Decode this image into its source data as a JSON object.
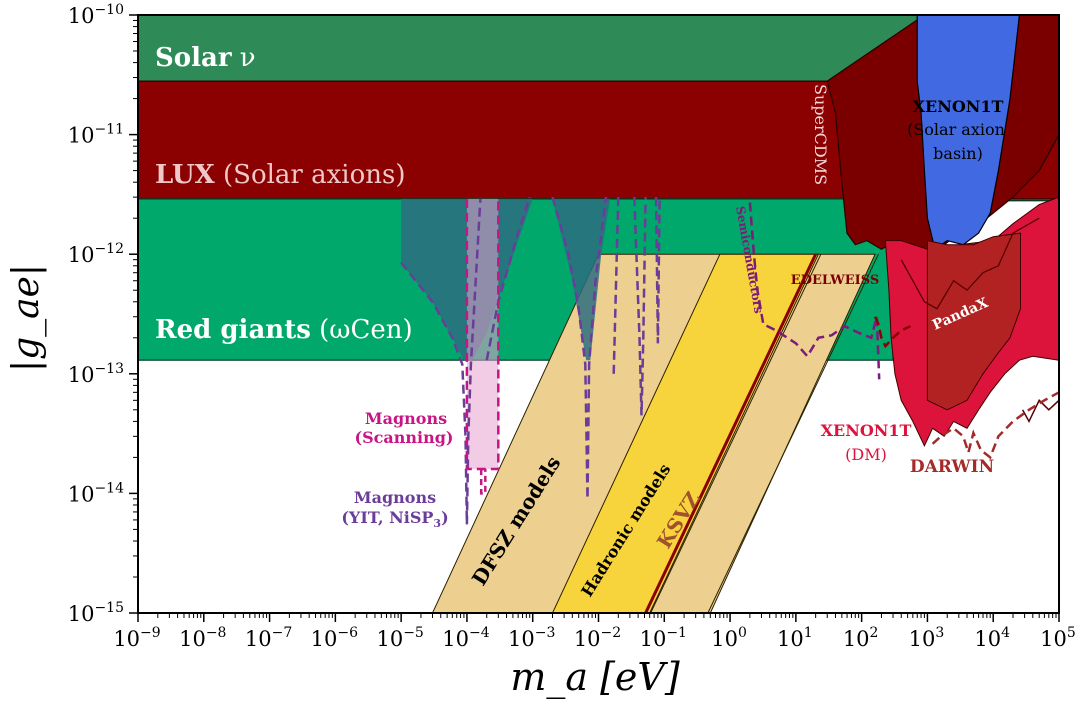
{
  "chart_data": {
    "type": "area",
    "title": "",
    "xlabel": "m_a [eV]",
    "ylabel": "|g_ae|",
    "x_scale": "log",
    "y_scale": "log",
    "xlim": [
      1e-09,
      100000.0
    ],
    "ylim": [
      1e-15,
      1e-10
    ],
    "grid": false,
    "x_ticks": [
      {
        "base": "10",
        "exp": "−9",
        "value": 1e-09
      },
      {
        "base": "10",
        "exp": "−8",
        "value": 1e-08
      },
      {
        "base": "10",
        "exp": "−7",
        "value": 1e-07
      },
      {
        "base": "10",
        "exp": "−6",
        "value": 1e-06
      },
      {
        "base": "10",
        "exp": "−5",
        "value": 1e-05
      },
      {
        "base": "10",
        "exp": "−4",
        "value": 0.0001
      },
      {
        "base": "10",
        "exp": "−3",
        "value": 0.001
      },
      {
        "base": "10",
        "exp": "−2",
        "value": 0.01
      },
      {
        "base": "10",
        "exp": "−1",
        "value": 0.1
      },
      {
        "base": "10",
        "exp": "0",
        "value": 1.0
      },
      {
        "base": "10",
        "exp": "1",
        "value": 10.0
      },
      {
        "base": "10",
        "exp": "2",
        "value": 100.0
      },
      {
        "base": "10",
        "exp": "3",
        "value": 1000.0
      },
      {
        "base": "10",
        "exp": "4",
        "value": 10000.0
      },
      {
        "base": "10",
        "exp": "5",
        "value": 100000.0
      }
    ],
    "y_ticks": [
      {
        "base": "10",
        "exp": "−10",
        "value": 1e-10
      },
      {
        "base": "10",
        "exp": "−11",
        "value": 1e-11
      },
      {
        "base": "10",
        "exp": "−12",
        "value": 1e-12
      },
      {
        "base": "10",
        "exp": "−13",
        "value": 1e-13
      },
      {
        "base": "10",
        "exp": "−14",
        "value": 1e-14
      },
      {
        "base": "10",
        "exp": "−15",
        "value": 1e-15
      }
    ],
    "colors": {
      "solar_nu": "#2e8b57",
      "lux": "#8b0000",
      "red_giants": "#00a86b",
      "xenon1t_solar": "#4169e1",
      "xenon1t_dm": "#dc143c",
      "pandax": "#b22222",
      "dark_red": "#7a0000",
      "dfsz": "#edd08f",
      "hadronic": "#f7d33c",
      "ksvz": "#8b0000",
      "magnon_scan": "#e8a1cf",
      "magnon_scan_line": "#c71585",
      "magnon_yit": "#6a3d9a",
      "semiconductor": "#7b1c7b",
      "darwin": "#a52a2a"
    },
    "series": [
      {
        "name": "Solar ν",
        "kind": "band",
        "x_range": [
          1e-09,
          100000.0
        ],
        "y_range": [
          2.8e-12,
          1e-10
        ]
      },
      {
        "name": "LUX (Solar axions)",
        "kind": "band",
        "x_range": [
          1e-09,
          100000.0
        ],
        "y_range": [
          2.9e-12,
          2.8e-11
        ]
      },
      {
        "name": "Red giants (ωCen)",
        "kind": "band",
        "x_range": [
          1e-09,
          300
        ],
        "y_range": [
          1.3e-13,
          2.9e-12
        ]
      },
      {
        "name": "DFSZ models",
        "kind": "diagonal_band",
        "points": [
          [
            3e-05,
            1e-15
          ],
          [
            0.09,
            1.3e-13
          ]
        ]
      },
      {
        "name": "Hadronic models",
        "kind": "diagonal_band",
        "points": [
          [
            0.002,
            1e-15
          ],
          [
            5,
            1.3e-13
          ]
        ]
      },
      {
        "name": "KSVZ",
        "kind": "line",
        "points": [
          [
            0.05,
            1e-15
          ],
          [
            5,
            1.3e-13
          ]
        ]
      },
      {
        "name": "Magnons (Scanning)",
        "kind": "projection",
        "x_range": [
          0.0001,
          0.0003
        ],
        "y_min": 1.6e-14
      },
      {
        "name": "Magnons (YIT, NiSP3)",
        "kind": "projection",
        "x_range": [
          5e-05,
          0.1
        ],
        "y_min": 5e-15
      },
      {
        "name": "Semiconductors",
        "kind": "projection",
        "x_range": [
          2,
          200
        ],
        "y_min": 1.4e-13
      },
      {
        "name": "SuperCDMS",
        "kind": "bound",
        "x_range": [
          30,
          100000.0
        ],
        "y_min": 1.2e-12
      },
      {
        "name": "EDELWEISS",
        "kind": "bound",
        "x_range": [
          100,
          300
        ],
        "y_min": 2e-13
      },
      {
        "name": "XENON1T (Solar axion basin)",
        "kind": "bound",
        "x_range": [
          700,
          100000.0
        ],
        "y_min": 1.1e-12
      },
      {
        "name": "XENON1T (DM)",
        "kind": "bound",
        "x_range": [
          200,
          100000.0
        ],
        "y_min": 2.5e-14
      },
      {
        "name": "PandaX",
        "kind": "bound",
        "x_range": [
          1000.0,
          100000.0
        ],
        "y_min": 5e-14
      },
      {
        "name": "DARWIN",
        "kind": "projection",
        "x_range": [
          1000.0,
          100000.0
        ],
        "y_min": 1.8e-14
      }
    ],
    "labels": {
      "solar_bold": "Solar",
      "solar_rest": " ν",
      "lux_bold": "LUX",
      "lux_rest": " (Solar axions)",
      "rg_bold": "Red giants",
      "rg_rest": " (ωCen)",
      "xenon_solar_1": "XENON1T",
      "xenon_solar_2": "(Solar axion",
      "xenon_solar_3": "basin)",
      "supercdms": "SuperCDMS",
      "semiconductors": "Semiconductors",
      "edelweiss": "EDELWEISS",
      "pandax": "PandaX",
      "xenon_dm_1": "XENON1T",
      "xenon_dm_2": "(DM)",
      "darwin": "DARWIN",
      "magnons_scan_1": "Magnons",
      "magnons_scan_2": "(Scanning)",
      "magnons_yit_1": "Magnons",
      "magnons_yit_2": "(YIT, NiSP",
      "magnons_yit_sub": "3",
      "magnons_yit_3": ")",
      "dfsz": "DFSZ models",
      "hadronic": "Hadronic models",
      "ksvz": "KSVZ"
    }
  }
}
